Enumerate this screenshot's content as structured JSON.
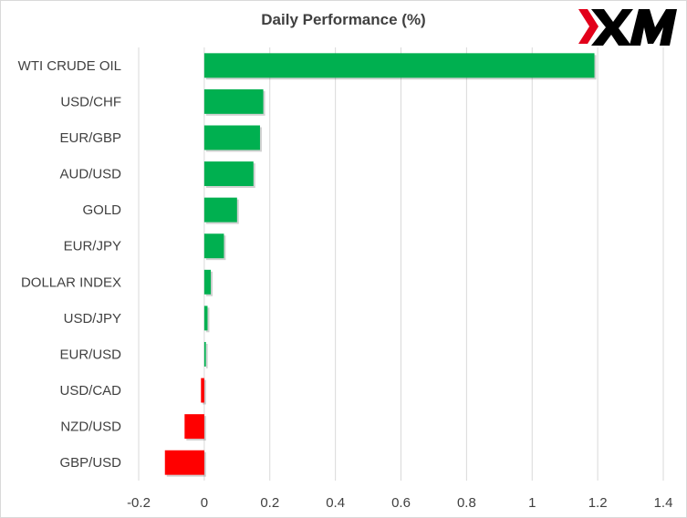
{
  "chart_data": {
    "type": "bar",
    "orientation": "horizontal",
    "title": "Daily Performance  (%)",
    "categories": [
      "WTI CRUDE OIL",
      "USD/CHF",
      "EUR/GBP",
      "AUD/USD",
      "GOLD",
      "EUR/JPY",
      "DOLLAR INDEX",
      "USD/JPY",
      "EUR/USD",
      "USD/CAD",
      "NZD/USD",
      "GBP/USD"
    ],
    "values": [
      1.19,
      0.18,
      0.17,
      0.15,
      0.1,
      0.06,
      0.02,
      0.01,
      0.005,
      -0.01,
      -0.06,
      -0.12
    ],
    "xlim": [
      -0.2,
      1.4
    ],
    "xticks": [
      "-0.2",
      "0",
      "0.2",
      "0.4",
      "0.6",
      "0.8",
      "1",
      "1.2",
      "1.4"
    ],
    "xtick_values": [
      -0.2,
      0,
      0.2,
      0.4,
      0.6,
      0.8,
      1,
      1.2,
      1.4
    ],
    "grid": "vertical",
    "legend": "none",
    "colors": {
      "positive": "#00b050",
      "negative": "#ff0000",
      "gridline": "#d9d9d9",
      "text": "#404040"
    }
  },
  "logo": {
    "text": "XM",
    "color": "#000000",
    "accent": "#e2001a"
  }
}
